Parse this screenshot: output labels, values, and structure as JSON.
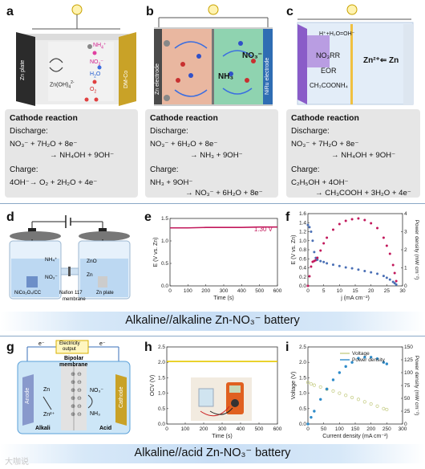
{
  "panels": {
    "a": {
      "label": "a",
      "electrode_left": "Zn plate",
      "electrode_right": "DM-Co",
      "zincate": "Zn(OH)",
      "zincate_sup": "2-",
      "zincate_sub": "4",
      "species": [
        "NH",
        "NO",
        "H",
        "O"
      ],
      "species_subs": [
        "4",
        "3",
        "2",
        "2"
      ],
      "species_tail": [
        "⁺",
        "⁻",
        "O",
        ""
      ],
      "box": {
        "title": "Cathode reaction",
        "discharge": "Discharge:",
        "discharge_line1": "NO₃⁻ + 7H₂O + 8e⁻",
        "discharge_line2": "→ NH₄OH + 9OH⁻",
        "charge": "Charge:",
        "charge_line1": "4OH⁻→ O₂ + 2H₂O + 4e⁻"
      }
    },
    "b": {
      "label": "b",
      "electrode_left": "Zn electrode",
      "electrode_right": "NiRu electrode",
      "species_right": "NO₃⁻",
      "species_mid": "NH₃",
      "box": {
        "title": "Cathode reaction",
        "discharge": "Discharge:",
        "discharge_line1": "NO₃⁻ + 6H₂O + 8e⁻",
        "discharge_line2": "→ NH₃ + 9OH⁻",
        "charge": "Charge:",
        "charge_line1": "NH₃ + 9OH⁻",
        "charge_line2": "→ NO₃⁻ + 6H₂O + 8e⁻"
      }
    },
    "c": {
      "label": "c",
      "top_eq": "H⁺+H₂O=OH⁻",
      "nrr": "NO₃RR",
      "eor": "EOR",
      "acetate": "CH₃COONH₄",
      "zn_eq": "Zn²⁺⇐ Zn",
      "box": {
        "title": "Cathode reaction",
        "discharge": "Discharge:",
        "discharge_line1": "NO₃⁻ + 7H₂O + 8e⁻",
        "discharge_line2": "→ NH₄OH + 9OH⁻",
        "charge": "Charge:",
        "charge_line1": "C₂H₅OH + 4OH⁻",
        "charge_line2": "→ CH₃COOH + 3H₂O + 4e⁻"
      }
    },
    "d": {
      "label": "d",
      "nh4": "NH₄⁺",
      "no3": "NO₃⁻",
      "zno": "ZnO",
      "zn": "Zn",
      "cathode": "NiCo₂O₄/CC",
      "membrane": "Nafion 117\nmembrane",
      "membrane_l1": "Nafion 117",
      "membrane_l2": "membrane",
      "anode": "Zn plate"
    },
    "e": {
      "label": "e",
      "annotation": "1.30 V",
      "ylabel": "E (V vs. Zn)",
      "xlabel": "Time (s)",
      "xticks": [
        "0",
        "100",
        "200",
        "300",
        "400",
        "500",
        "600"
      ],
      "yticks": [
        "0.0",
        "0.5",
        "1.0",
        "1.5"
      ]
    },
    "f": {
      "label": "f",
      "ylabel_left": "E (V vs. Zn)",
      "ylabel_right": "Power density (mW cm⁻²)",
      "xlabel": "j (mA cm⁻²)",
      "xticks": [
        "0",
        "5",
        "10",
        "15",
        "20",
        "25",
        "30"
      ],
      "yticks_left": [
        "0.0",
        "0.2",
        "0.4",
        "0.6",
        "0.8",
        "1.0",
        "1.2",
        "1.4",
        "1.6"
      ],
      "yticks_right": [
        "0",
        "1",
        "2",
        "3",
        "4"
      ]
    },
    "g": {
      "label": "g",
      "electricity": "Electricity\noutput",
      "electricity_l1": "Electricity",
      "electricity_l2": "output",
      "e_left": "e⁻",
      "e_right": "e⁻",
      "bipolar": "Bipolar\nmembrane",
      "bipolar_l1": "Bipolar",
      "bipolar_l2": "membrane",
      "anode": "Anode",
      "cathode": "Cathode",
      "zn": "Zn",
      "zn2": "Zn²⁺",
      "no3": "NO₃⁻",
      "nh3": "NH₃",
      "alkali": "Alkali",
      "acid": "Acid"
    },
    "h": {
      "label": "h",
      "ylabel": "OCV (V)",
      "xlabel": "Time (s)",
      "xticks": [
        "0",
        "100",
        "200",
        "300",
        "400",
        "500",
        "600"
      ],
      "yticks": [
        "0.0",
        "0.5",
        "1.0",
        "1.5",
        "2.0",
        "2.5"
      ]
    },
    "i": {
      "label": "i",
      "legend": [
        "Voltage",
        "Power density"
      ],
      "ylabel_left": "Voltage (V)",
      "ylabel_right": "Power density (mW cm⁻²)",
      "xlabel": "Current density (mA cm⁻²)",
      "xticks": [
        "0",
        "50",
        "100",
        "150",
        "200",
        "250",
        "300"
      ],
      "yticks_left": [
        "0.0",
        "0.5",
        "1.0",
        "1.5",
        "2.0",
        "2.5"
      ],
      "yticks_right": [
        "0",
        "25",
        "50",
        "75",
        "100",
        "125",
        "150"
      ]
    }
  },
  "banners": {
    "alkaline": "Alkaline//alkaline  Zn-NO₃⁻ battery",
    "acid": "Alkaline//acid  Zn-NO₃⁻ battery"
  },
  "watermark": "大咖说",
  "colors": {
    "zn_plate": "#2b2b2b",
    "dm_co": "#c9a227",
    "catholyte_b": "#e9b7a0",
    "anolyte_b": "#8fd3b0",
    "niru": "#2f6db3",
    "banner": "#c8def5",
    "e_curve": "#c2185b",
    "f_voltage": "#4a6fb5",
    "f_power": "#c2185b",
    "h_line": "#e6c800",
    "i_voltage": "#c8cf8a",
    "i_power": "#2e8bc9"
  },
  "chart_data": [
    {
      "type": "line",
      "id": "e",
      "x": [
        0,
        100,
        200,
        300,
        400,
        500,
        600
      ],
      "series": [
        {
          "values": [
            1.29,
            1.29,
            1.3,
            1.3,
            1.3,
            1.31,
            1.31
          ]
        }
      ],
      "xlabel": "Time (s)",
      "ylabel": "E (V vs. Zn)",
      "xlim": [
        0,
        600
      ],
      "ylim": [
        0.0,
        1.5
      ]
    },
    {
      "type": "scatter",
      "id": "f",
      "x": [
        0,
        0.5,
        1,
        1.5,
        2,
        2.5,
        3,
        4,
        5,
        6,
        8,
        10,
        12,
        14,
        16,
        18,
        20,
        22,
        24,
        25,
        26,
        27,
        27.5,
        28
      ],
      "series": [
        {
          "values": [
            1.35,
            1.3,
            1.2,
            1.0,
            0.75,
            0.62,
            0.58,
            0.55,
            0.53,
            0.5,
            0.47,
            0.44,
            0.41,
            0.39,
            0.36,
            0.33,
            0.3,
            0.27,
            0.22,
            0.18,
            0.14,
            0.09,
            0.06,
            0.03
          ]
        },
        {
          "values": [
            0,
            0.6,
            1.2,
            1.5,
            1.55,
            1.6,
            1.75,
            2.2,
            2.65,
            3.0,
            3.5,
            3.85,
            4.05,
            4.15,
            4.2,
            4.1,
            3.9,
            3.6,
            3.0,
            2.5,
            2.0,
            1.3,
            0.8,
            0.3
          ]
        }
      ],
      "xlabel": "j (mA cm⁻²)",
      "ylabel": "E (V vs. Zn)",
      "xlim": [
        0,
        30
      ],
      "ylim": [
        0.0,
        1.6
      ],
      "y2lim": [
        0,
        4.5
      ]
    },
    {
      "type": "line",
      "id": "h",
      "x": [
        0,
        100,
        200,
        300,
        400,
        500,
        600
      ],
      "series": [
        {
          "values": [
            2.03,
            2.03,
            2.03,
            2.03,
            2.03,
            2.03,
            2.03
          ]
        }
      ],
      "xlabel": "Time (s)",
      "ylabel": "OCV (V)",
      "xlim": [
        0,
        600
      ],
      "ylim": [
        0.0,
        2.5
      ]
    },
    {
      "type": "scatter",
      "id": "i",
      "x": [
        0,
        10,
        20,
        40,
        60,
        80,
        100,
        120,
        140,
        160,
        180,
        200,
        220,
        240,
        250
      ],
      "series": [
        {
          "name": "Voltage",
          "values": [
            1.35,
            1.3,
            1.26,
            1.2,
            1.13,
            1.07,
            1.0,
            0.93,
            0.86,
            0.8,
            0.72,
            0.65,
            0.58,
            0.5,
            0.47
          ]
        },
        {
          "name": "Power density",
          "values": [
            0,
            13,
            25,
            48,
            68,
            86,
            100,
            112,
            120,
            128,
            130,
            130,
            127,
            120,
            117
          ]
        }
      ],
      "xlabel": "Current density (mA cm⁻²)",
      "ylabel": "Voltage (V)",
      "xlim": [
        0,
        300
      ],
      "ylim": [
        0.0,
        2.5
      ],
      "y2lim": [
        0,
        150
      ]
    }
  ]
}
